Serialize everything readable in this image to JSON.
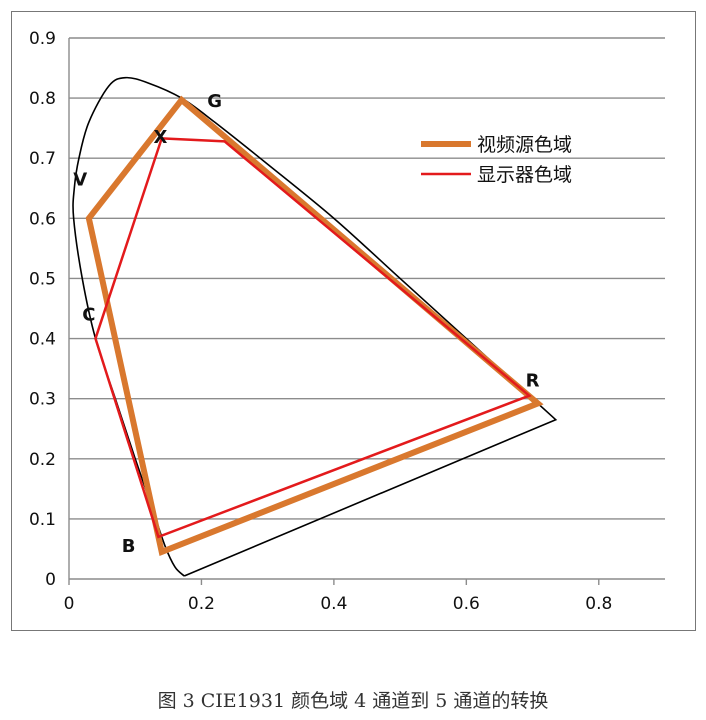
{
  "chart_data": {
    "type": "scatter",
    "title": "",
    "xlabel": "",
    "ylabel": "",
    "xlim": [
      0,
      0.9
    ],
    "ylim": [
      0,
      0.9
    ],
    "x_ticks": [
      0,
      0.2,
      0.4,
      0.6,
      0.8
    ],
    "x_tick_labels": [
      "0",
      "0.2",
      "0.4",
      "0.6",
      "0.8"
    ],
    "y_ticks": [
      0,
      0.1,
      0.2,
      0.3,
      0.4,
      0.5,
      0.6,
      0.7,
      0.8,
      0.9
    ],
    "y_tick_labels": [
      "0",
      "0.1",
      "0.2",
      "0.3",
      "0.4",
      "0.5",
      "0.6",
      "0.7",
      "0.8",
      "0.9"
    ],
    "grid": "horizontal",
    "legend_position": "top-right",
    "spectral_locus": [
      [
        0.174,
        0.005
      ],
      [
        0.16,
        0.02
      ],
      [
        0.145,
        0.055
      ],
      [
        0.125,
        0.12
      ],
      [
        0.1,
        0.2
      ],
      [
        0.07,
        0.3
      ],
      [
        0.04,
        0.4
      ],
      [
        0.02,
        0.5
      ],
      [
        0.007,
        0.6
      ],
      [
        0.008,
        0.65
      ],
      [
        0.015,
        0.7
      ],
      [
        0.03,
        0.76
      ],
      [
        0.06,
        0.82
      ],
      [
        0.085,
        0.834
      ],
      [
        0.12,
        0.825
      ],
      [
        0.17,
        0.8
      ],
      [
        0.22,
        0.76
      ],
      [
        0.3,
        0.69
      ],
      [
        0.4,
        0.6
      ],
      [
        0.5,
        0.5
      ],
      [
        0.6,
        0.4
      ],
      [
        0.68,
        0.32
      ],
      [
        0.735,
        0.265
      ],
      [
        0.174,
        0.005
      ]
    ],
    "series": [
      {
        "name": "视频源色域",
        "color": "#D9782E",
        "closed": true,
        "points": [
          {
            "label": "G",
            "x": 0.17,
            "y": 0.797
          },
          {
            "label": "R",
            "x": 0.708,
            "y": 0.292
          },
          {
            "label": "B",
            "x": 0.14,
            "y": 0.045
          },
          {
            "label": "V",
            "x": 0.03,
            "y": 0.6
          }
        ]
      },
      {
        "name": "显示器色域",
        "color": "#E31A1C",
        "closed": true,
        "points": [
          {
            "label": "X",
            "x": 0.14,
            "y": 0.733
          },
          {
            "label": "",
            "x": 0.235,
            "y": 0.728
          },
          {
            "label": "R",
            "x": 0.695,
            "y": 0.305
          },
          {
            "label": "B",
            "x": 0.135,
            "y": 0.07
          },
          {
            "label": "C",
            "x": 0.04,
            "y": 0.4
          }
        ]
      }
    ],
    "point_labels": [
      {
        "text": "G",
        "x": 0.22,
        "y": 0.785
      },
      {
        "text": "X",
        "x": 0.138,
        "y": 0.725
      },
      {
        "text": "V",
        "x": 0.017,
        "y": 0.655
      },
      {
        "text": "C",
        "x": 0.03,
        "y": 0.43
      },
      {
        "text": "R",
        "x": 0.7,
        "y": 0.32
      },
      {
        "text": "B",
        "x": 0.09,
        "y": 0.045
      }
    ]
  },
  "caption": "图 3 CIE1931 颜色域 4 通道到 5 通道的转换"
}
